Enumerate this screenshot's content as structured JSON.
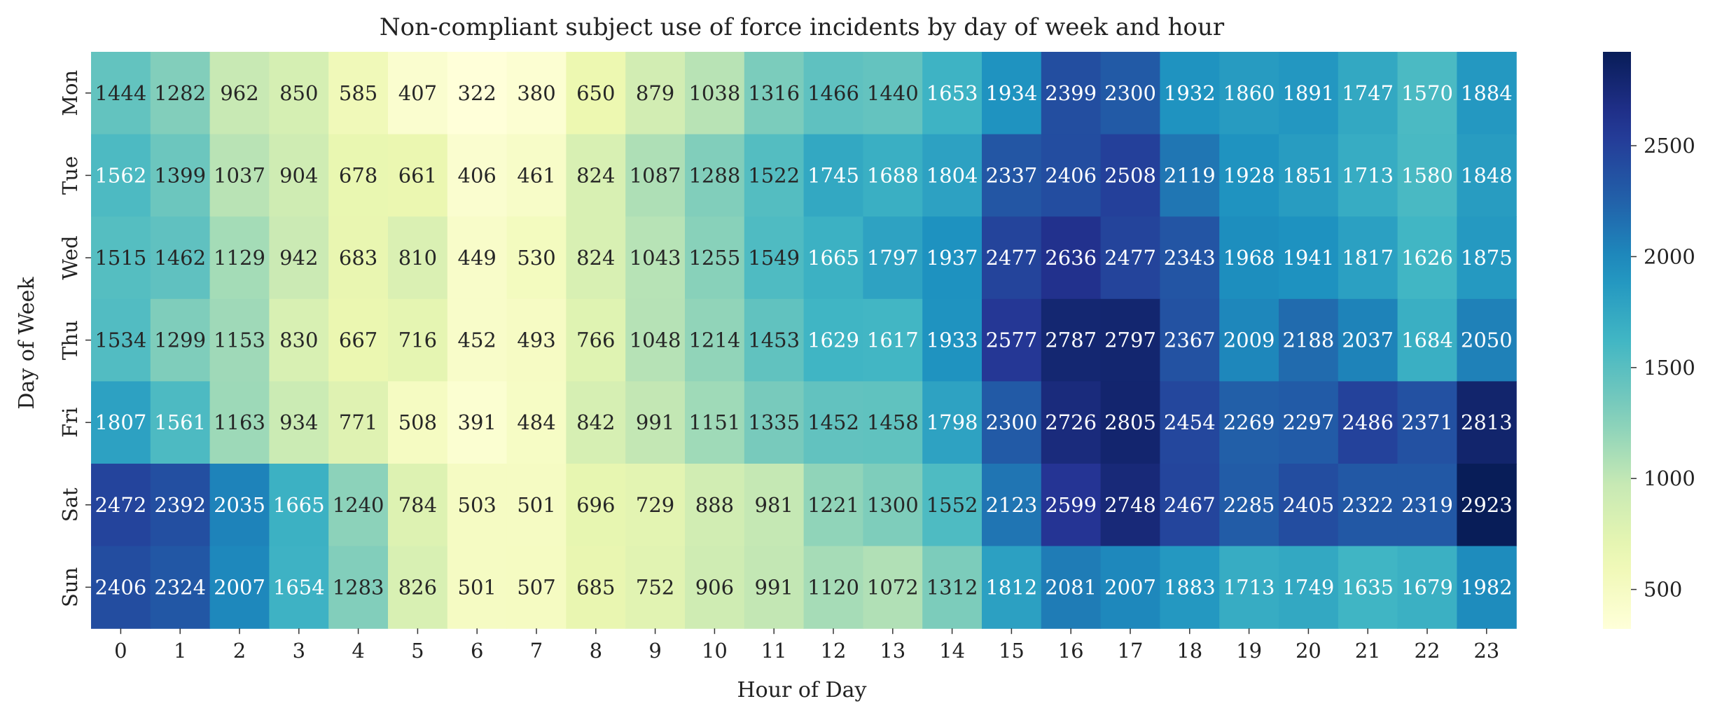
{
  "chart_data": {
    "type": "heatmap",
    "title": "Non-compliant subject use of force incidents by day of week and hour",
    "xlabel": "Hour of Day",
    "ylabel": "Day of Week",
    "x_categories": [
      "0",
      "1",
      "2",
      "3",
      "4",
      "5",
      "6",
      "7",
      "8",
      "9",
      "10",
      "11",
      "12",
      "13",
      "14",
      "15",
      "16",
      "17",
      "18",
      "19",
      "20",
      "21",
      "22",
      "23"
    ],
    "y_categories": [
      "Mon",
      "Tue",
      "Wed",
      "Thu",
      "Fri",
      "Sat",
      "Sun"
    ],
    "values": [
      [
        1444,
        1282,
        962,
        850,
        585,
        407,
        322,
        380,
        650,
        879,
        1038,
        1316,
        1466,
        1440,
        1653,
        1934,
        2399,
        2300,
        1932,
        1860,
        1891,
        1747,
        1570,
        1884
      ],
      [
        1562,
        1399,
        1037,
        904,
        678,
        661,
        406,
        461,
        824,
        1087,
        1288,
        1522,
        1745,
        1688,
        1804,
        2337,
        2406,
        2508,
        2119,
        1928,
        1851,
        1713,
        1580,
        1848
      ],
      [
        1515,
        1462,
        1129,
        942,
        683,
        810,
        449,
        530,
        824,
        1043,
        1255,
        1549,
        1665,
        1797,
        1937,
        2477,
        2636,
        2477,
        2343,
        1968,
        1941,
        1817,
        1626,
        1875
      ],
      [
        1534,
        1299,
        1153,
        830,
        667,
        716,
        452,
        493,
        766,
        1048,
        1214,
        1453,
        1629,
        1617,
        1933,
        2577,
        2787,
        2797,
        2367,
        2009,
        2188,
        2037,
        1684,
        2050
      ],
      [
        1807,
        1561,
        1163,
        934,
        771,
        508,
        391,
        484,
        842,
        991,
        1151,
        1335,
        1452,
        1458,
        1798,
        2300,
        2726,
        2805,
        2454,
        2269,
        2297,
        2486,
        2371,
        2813
      ],
      [
        2472,
        2392,
        2035,
        1665,
        1240,
        784,
        503,
        501,
        696,
        729,
        888,
        981,
        1221,
        1300,
        1552,
        2123,
        2599,
        2748,
        2467,
        2285,
        2405,
        2322,
        2319,
        2923
      ],
      [
        2406,
        2324,
        2007,
        1654,
        1283,
        826,
        501,
        507,
        685,
        752,
        906,
        991,
        1120,
        1072,
        1312,
        1812,
        2081,
        2007,
        1883,
        1713,
        1749,
        1635,
        1679,
        1982
      ]
    ],
    "colormap": "YlGnBu",
    "vmin": 322,
    "vmax": 2923,
    "colorbar_ticks": [
      500,
      1000,
      1500,
      2000,
      2500
    ],
    "annotated": true
  }
}
